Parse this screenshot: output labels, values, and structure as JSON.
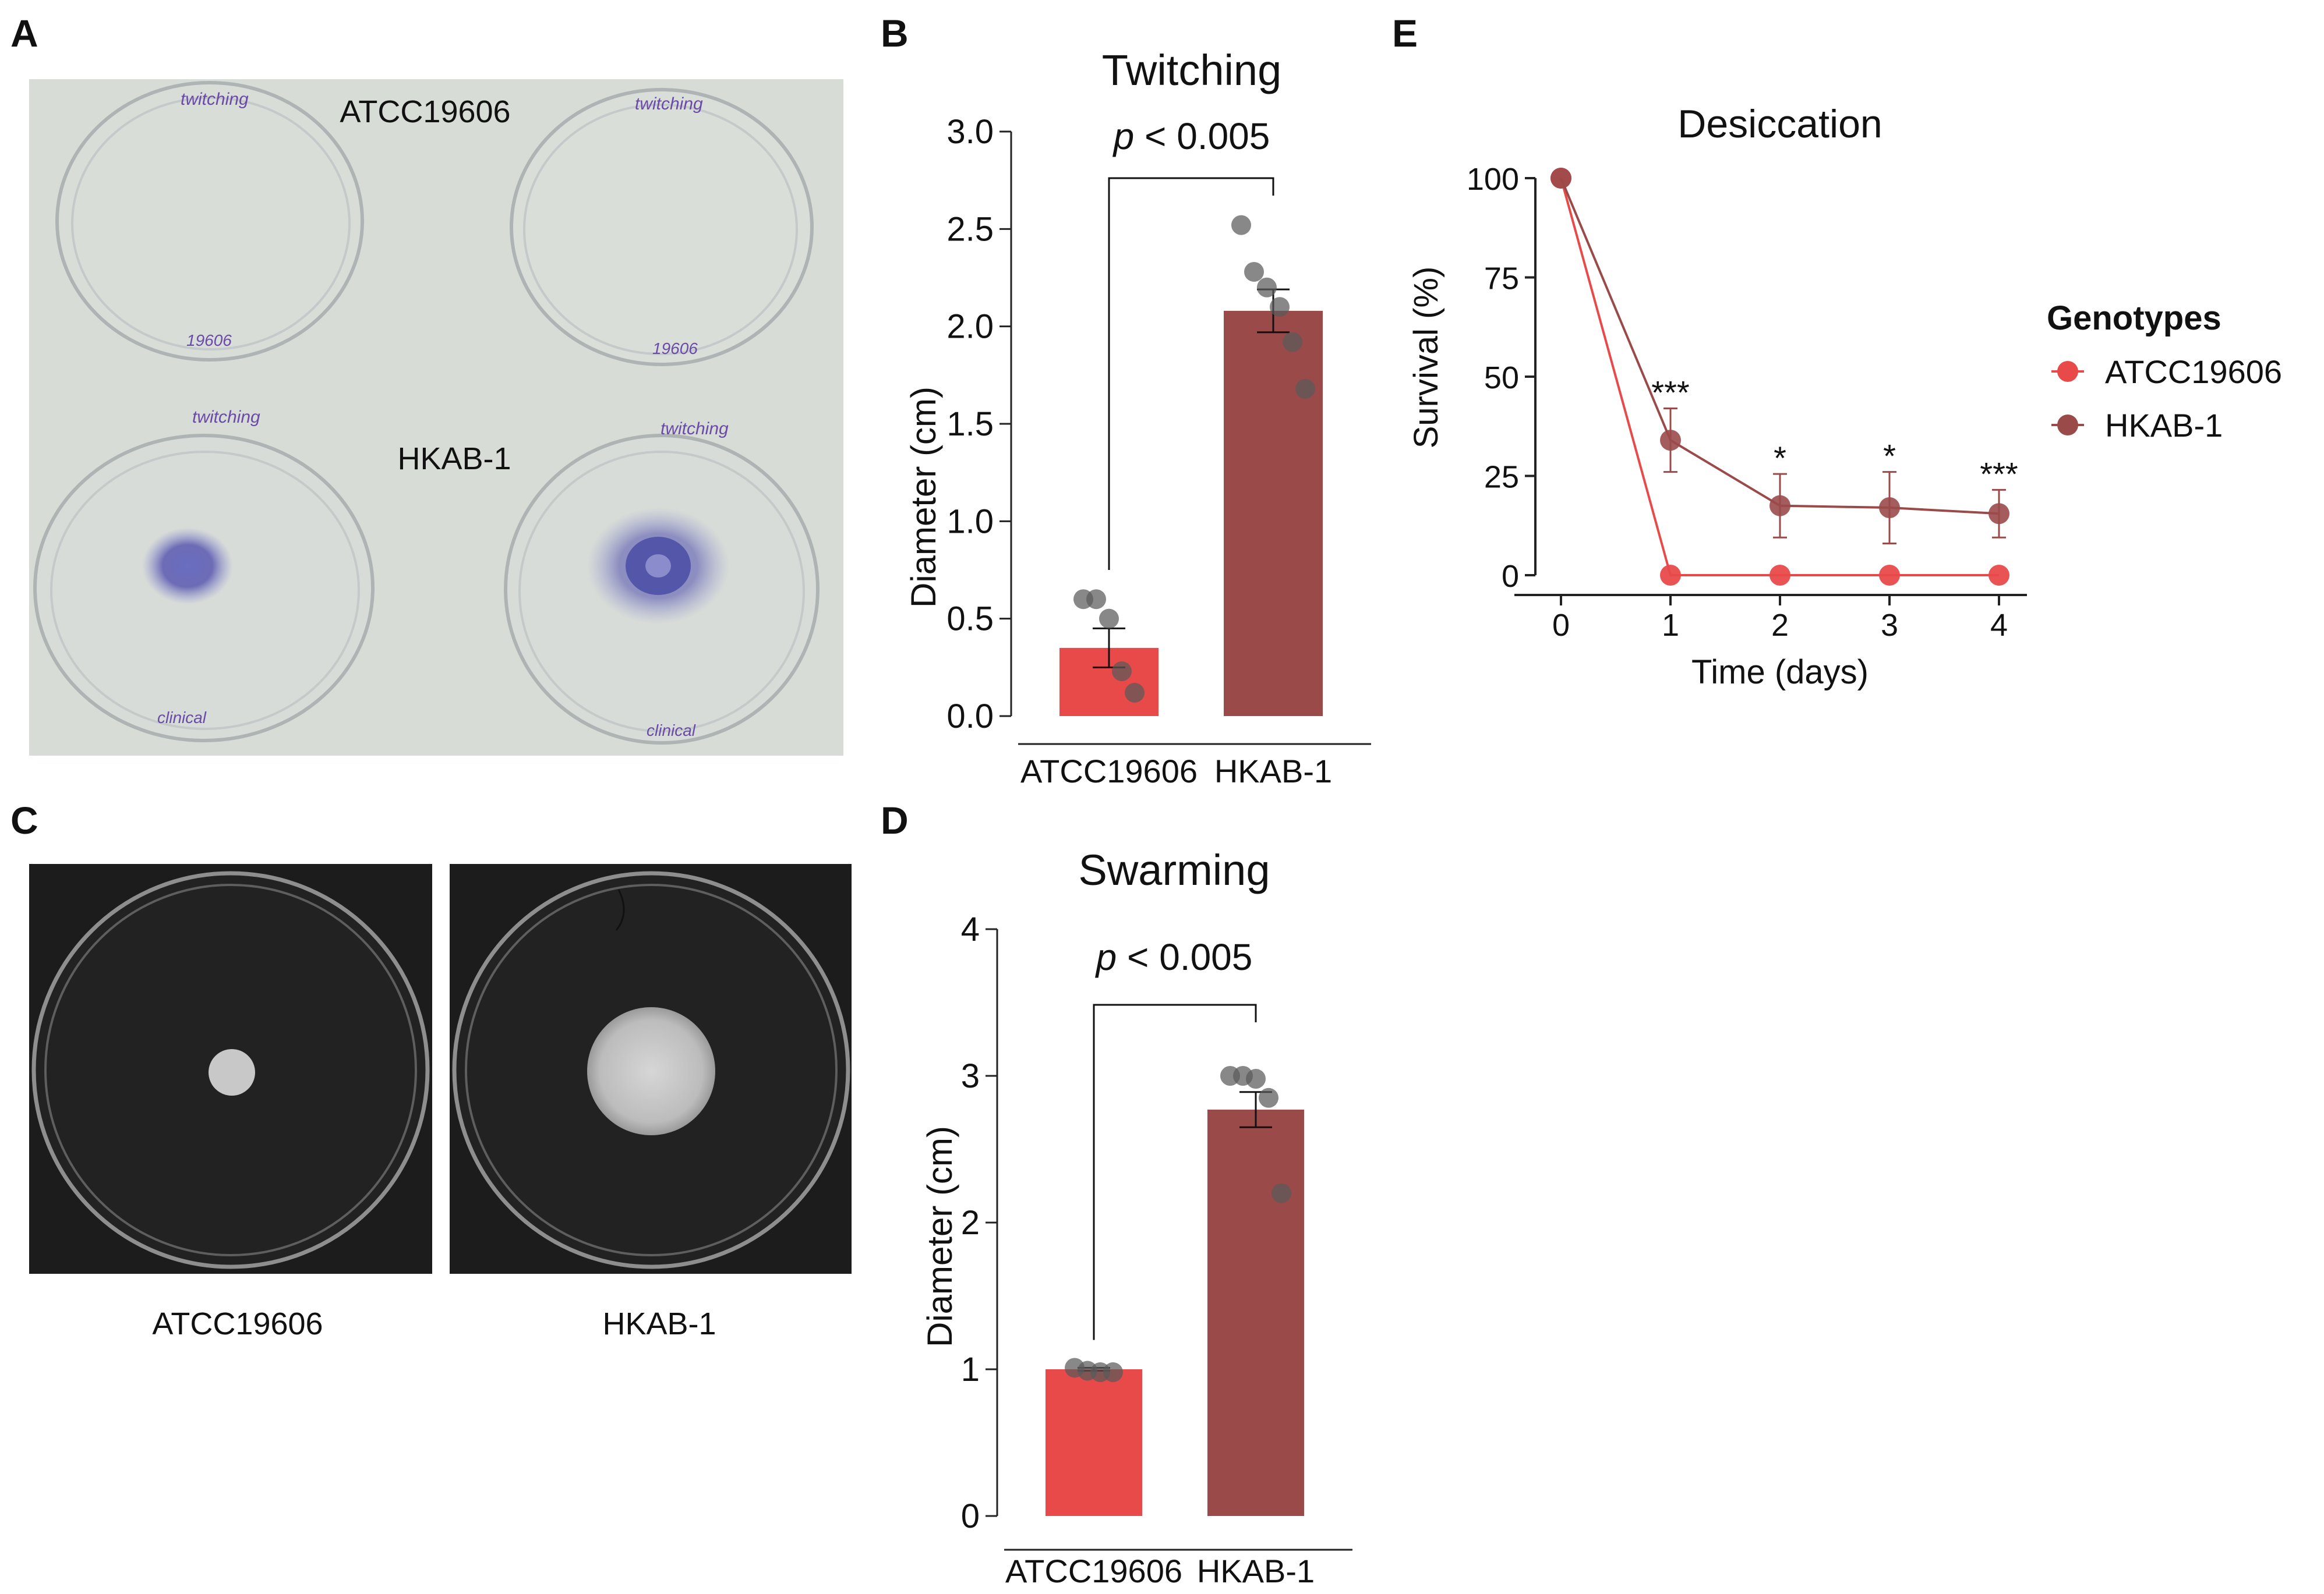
{
  "panels": {
    "a": {
      "letter": "A",
      "top_label": "ATCC19606",
      "bottom_label": "HKAB-1",
      "plate_writing": [
        "twitching",
        "19606",
        "clinical"
      ]
    },
    "b": {
      "letter": "B"
    },
    "c": {
      "letter": "C",
      "left_label": "ATCC19606",
      "right_label": "HKAB-1"
    },
    "d": {
      "letter": "D"
    },
    "e": {
      "letter": "E"
    }
  },
  "colors": {
    "atcc": "#e84a4a",
    "hkab": "#9b4a4a",
    "point": "#5a5a5a",
    "axis": "#222222"
  },
  "chart_data": [
    {
      "id": "twitching",
      "type": "bar",
      "title": "Twitching",
      "ylabel": "Diameter (cm)",
      "xlabel": "",
      "categories": [
        "ATCC19606",
        "HKAB-1"
      ],
      "values": [
        0.35,
        2.08
      ],
      "errors": [
        0.1,
        0.11
      ],
      "points": [
        [
          0.6,
          0.6,
          0.5,
          0.23,
          0.12
        ],
        [
          2.52,
          2.28,
          2.2,
          2.1,
          1.92,
          1.68
        ]
      ],
      "ylim": [
        0,
        3.0
      ],
      "yticks": [
        0.0,
        0.5,
        1.0,
        1.5,
        2.0,
        2.5,
        3.0
      ],
      "ytick_labels": [
        "0.0",
        "0.5",
        "1.0",
        "1.5",
        "2.0",
        "2.5",
        "3.0"
      ],
      "annotation": {
        "italic": "p",
        "text": " < 0.005"
      }
    },
    {
      "id": "swarming",
      "type": "bar",
      "title": "Swarming",
      "ylabel": "Diameter (cm)",
      "xlabel": "",
      "categories": [
        "ATCC19606",
        "HKAB-1"
      ],
      "values": [
        1.0,
        2.77
      ],
      "errors": [
        0.01,
        0.12
      ],
      "points": [
        [
          1.01,
          0.99,
          0.98,
          0.98
        ],
        [
          3.0,
          3.0,
          2.98,
          2.85,
          2.2
        ]
      ],
      "ylim": [
        0,
        4
      ],
      "yticks": [
        0,
        1,
        2,
        3,
        4
      ],
      "ytick_labels": [
        "0",
        "1",
        "2",
        "3",
        "4"
      ],
      "annotation": {
        "italic": "p",
        "text": " < 0.005"
      }
    },
    {
      "id": "desiccation",
      "type": "line",
      "title": "Desiccation",
      "xlabel": "Time (days)",
      "ylabel": "Survival (%)",
      "x": [
        0,
        1,
        2,
        3,
        4
      ],
      "xlim": [
        0,
        4
      ],
      "ylim": [
        0,
        100
      ],
      "yticks": [
        0,
        25,
        50,
        75,
        100
      ],
      "legend_title": "Genotypes",
      "legend_position": "right",
      "series": [
        {
          "name": "ATCC19606",
          "values": [
            100,
            0,
            0,
            0,
            0
          ],
          "errors": [
            0,
            0,
            0,
            0,
            0
          ]
        },
        {
          "name": "HKAB-1",
          "values": [
            100,
            34,
            17.5,
            17,
            15.5
          ],
          "errors": [
            0,
            8,
            8,
            9,
            6
          ]
        }
      ],
      "significance": [
        "",
        "***",
        "*",
        "*",
        "***"
      ]
    }
  ]
}
